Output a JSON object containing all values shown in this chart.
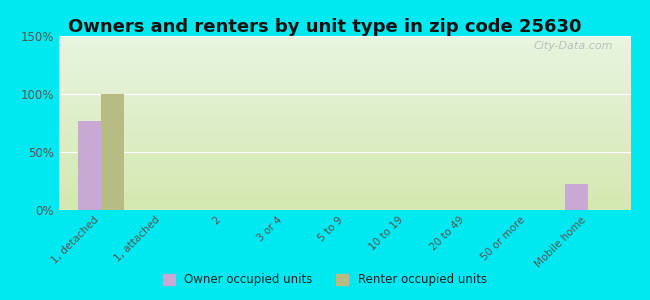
{
  "title": "Owners and renters by unit type in zip code 25630",
  "categories": [
    "1, detached",
    "1, attached",
    "2",
    "3 or 4",
    "5 to 9",
    "10 to 19",
    "20 to 49",
    "50 or more",
    "Mobile home"
  ],
  "owner_values": [
    77,
    0,
    0,
    0,
    0,
    0,
    0,
    0,
    22
  ],
  "renter_values": [
    100,
    0,
    0,
    0,
    0,
    0,
    0,
    0,
    0
  ],
  "owner_color": "#c9a8d4",
  "renter_color": "#b8bc84",
  "background_outer": "#00e8f0",
  "background_plot_bottom": "#d4e8b0",
  "background_plot_top": "#e8f5e0",
  "ylim": [
    0,
    150
  ],
  "yticks": [
    0,
    50,
    100,
    150
  ],
  "ytick_labels": [
    "0%",
    "50%",
    "100%",
    "150%"
  ],
  "bar_width": 0.38,
  "title_fontsize": 13,
  "watermark": "City-Data.com",
  "legend_labels": [
    "Owner occupied units",
    "Renter occupied units"
  ]
}
